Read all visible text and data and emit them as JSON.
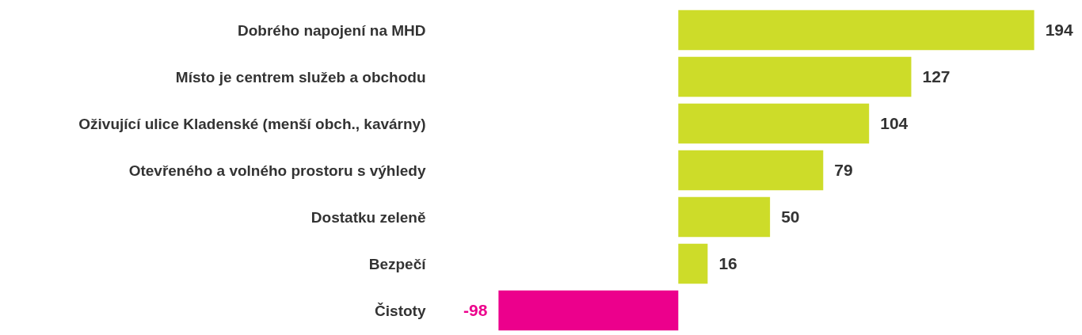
{
  "chart_data": {
    "type": "bar",
    "orientation": "horizontal",
    "data_labels": true,
    "categories": [
      "Dobrého napojení na MHD",
      "Místo je centrem služeb a obchodu",
      "Oživující ulice Kladenské (menší obch., kavárny)",
      "Otevřeného a volného prostoru s výhledy",
      "Dostatku zeleně",
      "Bezpečí",
      "Čistoty"
    ],
    "values": [
      194,
      127,
      104,
      79,
      50,
      16,
      -98
    ],
    "colors": [
      "#cddc29",
      "#cddc29",
      "#cddc29",
      "#cddc29",
      "#cddc29",
      "#cddc29",
      "#ec008c"
    ]
  }
}
